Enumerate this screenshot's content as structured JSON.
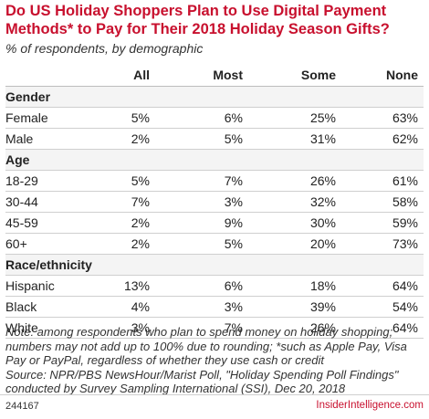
{
  "title": "Do US Holiday Shoppers Plan to Use Digital Payment Methods* to Pay for Their 2018 Holiday Season Gifts?",
  "subtitle": "% of respondents, by demographic",
  "columns": [
    "",
    "All",
    "Most",
    "Some",
    "None"
  ],
  "notes": "Note: among respondents who plan to spend money on holiday shopping; numbers may not add up to 100% due to rounding; *such as Apple Pay, Visa Pay or PayPal, regardless of whether they use cash or credit\nSource: NPR/PBS NewsHour/Marist Poll, \"Holiday Spending Poll Findings\" conducted by Survey Sampling International (SSI), Dec 20, 2018",
  "footer": {
    "id": "244167",
    "brand": "InsiderIntelligence.com"
  },
  "colors": {
    "title": "#c8102e",
    "brand": "#c8102e",
    "group_bg": "#f4f4f4"
  },
  "chart_data": {
    "type": "table",
    "title": "Do US Holiday Shoppers Plan to Use Digital Payment Methods* to Pay for Their 2018 Holiday Season Gifts?",
    "subtitle": "% of respondents, by demographic",
    "columns": [
      "All",
      "Most",
      "Some",
      "None"
    ],
    "rows": [
      {
        "group": "Gender"
      },
      {
        "label": "Female",
        "values": [
          "5%",
          "6%",
          "25%",
          "63%"
        ]
      },
      {
        "label": "Male",
        "values": [
          "2%",
          "5%",
          "31%",
          "62%"
        ]
      },
      {
        "group": "Age"
      },
      {
        "label": "18-29",
        "values": [
          "5%",
          "7%",
          "26%",
          "61%"
        ]
      },
      {
        "label": "30-44",
        "values": [
          "7%",
          "3%",
          "32%",
          "58%"
        ]
      },
      {
        "label": "45-59",
        "values": [
          "2%",
          "9%",
          "30%",
          "59%"
        ]
      },
      {
        "label": "60+",
        "values": [
          "2%",
          "5%",
          "20%",
          "73%"
        ]
      },
      {
        "group": "Race/ethnicity"
      },
      {
        "label": "Hispanic",
        "values": [
          "13%",
          "6%",
          "18%",
          "64%"
        ]
      },
      {
        "label": "Black",
        "values": [
          "4%",
          "3%",
          "39%",
          "54%"
        ]
      },
      {
        "label": "White",
        "values": [
          "3%",
          "7%",
          "26%",
          "64%"
        ]
      }
    ]
  }
}
